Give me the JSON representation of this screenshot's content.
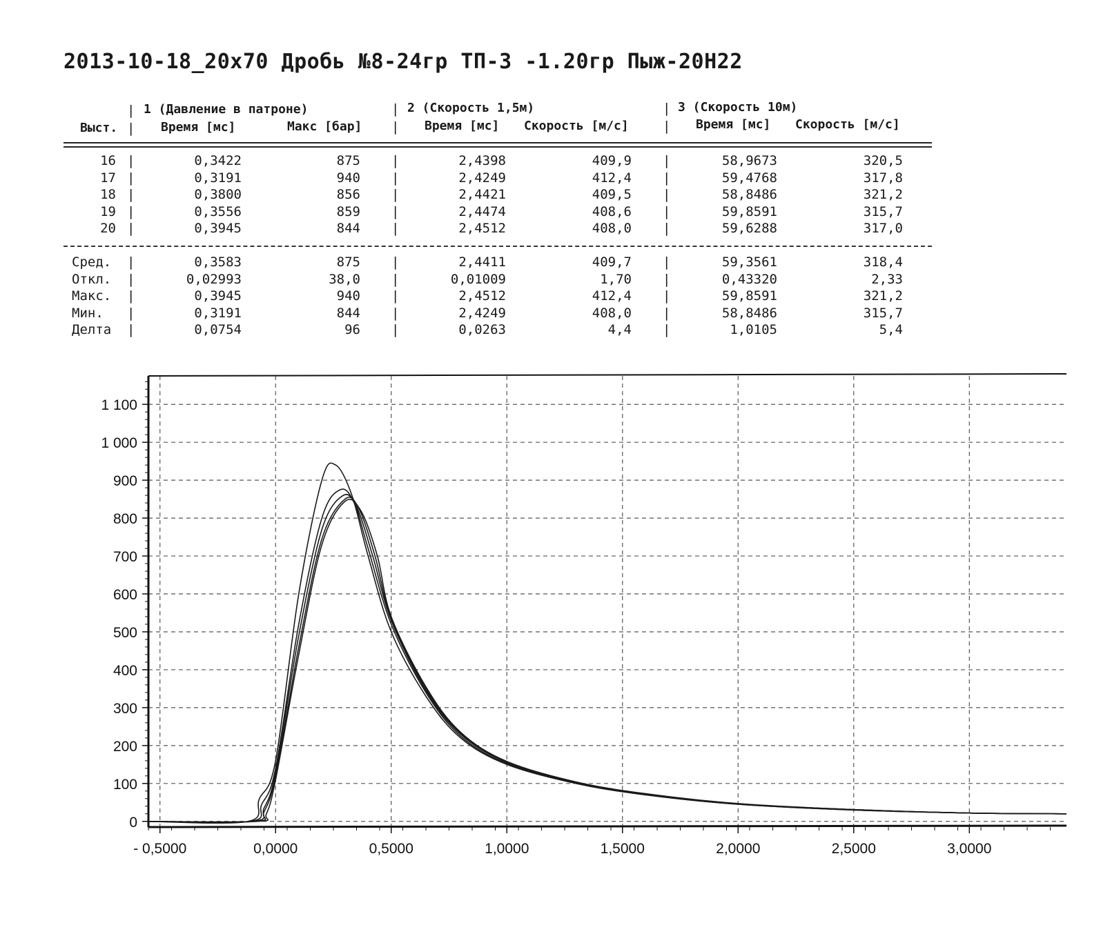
{
  "title": "2013-10-18_20x70 Дробь №8-24гр ТП-3 -1.20гр Пыж-20Н22",
  "table": {
    "group_headers": [
      "1 (Давление в патроне)",
      "2 (Скорость 1,5м)",
      "3 (Скорость 10м)"
    ],
    "col_headers": [
      "Выст.",
      "Время [мс]",
      "Макс [бар]",
      "Время [мс]",
      "Скорость [м/с]",
      "Время [мс]",
      "Скорость [м/с]"
    ],
    "rows": [
      [
        "16",
        "0,3422",
        "875",
        "2,4398",
        "409,9",
        "58,9673",
        "320,5"
      ],
      [
        "17",
        "0,3191",
        "940",
        "2,4249",
        "412,4",
        "59,4768",
        "317,8"
      ],
      [
        "18",
        "0,3800",
        "856",
        "2,4421",
        "409,5",
        "58,8486",
        "321,2"
      ],
      [
        "19",
        "0,3556",
        "859",
        "2,4474",
        "408,6",
        "59,8591",
        "315,7"
      ],
      [
        "20",
        "0,3945",
        "844",
        "2,4512",
        "408,0",
        "59,6288",
        "317,0"
      ]
    ],
    "stats": [
      [
        "Сред.",
        "0,3583",
        "875",
        "2,4411",
        "409,7",
        "59,3561",
        "318,4"
      ],
      [
        "Откл.",
        "0,02993",
        "38,0",
        "0,01009",
        "1,70",
        "0,43320",
        "2,33"
      ],
      [
        "Макс.",
        "0,3945",
        "940",
        "2,4512",
        "412,4",
        "59,8591",
        "321,2"
      ],
      [
        "Мин.",
        "0,3191",
        "844",
        "2,4249",
        "408,0",
        "58,8486",
        "315,7"
      ],
      [
        "Делта",
        "0,0754",
        "96",
        "0,0263",
        "4,4",
        "1,0105",
        "5,4"
      ]
    ]
  },
  "chart_data": {
    "type": "line",
    "title": "",
    "xlabel": "",
    "ylabel": "",
    "xlim": [
      -0.55,
      3.42
    ],
    "ylim": [
      -15,
      1175
    ],
    "x_ticks": [
      -0.5,
      0,
      0.5,
      1,
      1.5,
      2,
      2.5,
      3
    ],
    "x_tick_labels": [
      "- 0,5000",
      "0,0000",
      "0,5000",
      "1,0000",
      "1,5000",
      "2,0000",
      "2,5000",
      "3,0000"
    ],
    "y_ticks": [
      0,
      100,
      200,
      300,
      400,
      500,
      600,
      700,
      800,
      900,
      1000,
      1100
    ],
    "y_tick_labels": [
      "0",
      "100",
      "200",
      "300",
      "400",
      "500",
      "600",
      "700",
      "800",
      "900",
      "1 000",
      "1 100"
    ],
    "grid": true,
    "legend": "none",
    "color": "#1a1a1a",
    "series": [
      {
        "x": [
          -0.55,
          -0.12,
          -0.07,
          0.0,
          0.1,
          0.2,
          0.26,
          0.33,
          0.4,
          0.5,
          0.65,
          0.8,
          1.0,
          1.3,
          1.6,
          2.0,
          2.5,
          3.0,
          3.42
        ],
        "y": [
          0,
          0,
          60,
          160,
          600,
          900,
          940,
          860,
          700,
          500,
          330,
          220,
          150,
          100,
          70,
          45,
          30,
          22,
          20
        ]
      },
      {
        "x": [
          -0.55,
          -0.11,
          -0.06,
          0.0,
          0.1,
          0.2,
          0.28,
          0.34,
          0.4,
          0.5,
          0.65,
          0.8,
          1.0,
          1.3,
          1.6,
          2.0,
          2.5,
          3.0,
          3.42
        ],
        "y": [
          0,
          0,
          45,
          140,
          520,
          800,
          875,
          840,
          720,
          520,
          340,
          225,
          152,
          100,
          70,
          45,
          30,
          22,
          20
        ]
      },
      {
        "x": [
          -0.55,
          -0.1,
          -0.05,
          0.0,
          0.1,
          0.2,
          0.29,
          0.35,
          0.42,
          0.5,
          0.65,
          0.8,
          1.0,
          1.3,
          1.6,
          2.0,
          2.5,
          3.0,
          3.42
        ],
        "y": [
          0,
          0,
          35,
          130,
          490,
          770,
          859,
          830,
          700,
          530,
          345,
          230,
          155,
          102,
          72,
          46,
          31,
          22,
          20
        ]
      },
      {
        "x": [
          -0.55,
          -0.09,
          -0.05,
          0.0,
          0.1,
          0.2,
          0.3,
          0.36,
          0.43,
          0.5,
          0.65,
          0.8,
          1.0,
          1.3,
          1.6,
          2.0,
          2.5,
          3.0,
          3.42
        ],
        "y": [
          0,
          0,
          25,
          120,
          460,
          745,
          850,
          825,
          700,
          535,
          350,
          232,
          156,
          103,
          72,
          46,
          31,
          22,
          20
        ]
      },
      {
        "x": [
          -0.55,
          -0.08,
          -0.04,
          0.0,
          0.1,
          0.2,
          0.3,
          0.37,
          0.44,
          0.5,
          0.65,
          0.8,
          1.0,
          1.3,
          1.6,
          2.0,
          2.5,
          3.0,
          3.42
        ],
        "y": [
          0,
          0,
          20,
          110,
          440,
          730,
          844,
          818,
          700,
          540,
          355,
          235,
          158,
          104,
          73,
          47,
          31,
          22,
          20
        ]
      }
    ]
  }
}
